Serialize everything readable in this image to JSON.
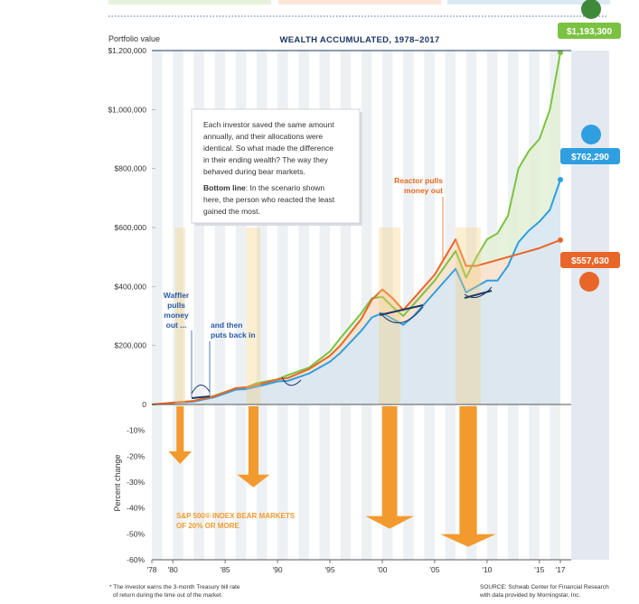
{
  "chart_data": {
    "type": "line",
    "title": "WEALTH ACCUMULATED, 1978–2017",
    "ylabel": "Portfolio value",
    "ylabel_lower": "Percent change",
    "xlabel": "",
    "x_ticks": [
      "'78",
      "'80",
      "'85",
      "'90",
      "'95",
      "'00",
      "'05",
      "'10",
      "'15",
      "'17"
    ],
    "x_tick_years": [
      1978,
      1980,
      1985,
      1990,
      1995,
      2000,
      2005,
      2010,
      2015,
      2017
    ],
    "ylim": [
      0,
      1200000
    ],
    "y_ticks": [
      {
        "value": 0,
        "label": "0"
      },
      {
        "value": 200000,
        "label": "$200,000"
      },
      {
        "value": 400000,
        "label": "$400,000"
      },
      {
        "value": 600000,
        "label": "$600,000"
      },
      {
        "value": 800000,
        "label": "$800,000"
      },
      {
        "value": 1000000,
        "label": "$1,000,000"
      },
      {
        "value": 1200000,
        "label": "$1,200,000"
      }
    ],
    "ylim_lower": [
      -60,
      0
    ],
    "lower_ticks": [
      {
        "value": -10,
        "label": "-10%"
      },
      {
        "value": -20,
        "label": "-20%"
      },
      {
        "value": -30,
        "label": "-30%"
      },
      {
        "value": -40,
        "label": "-40%"
      },
      {
        "value": -50,
        "label": "-50%"
      },
      {
        "value": -60,
        "label": "-60%"
      }
    ],
    "series": [
      {
        "name": "green",
        "color": "#7cc242",
        "x": [
          1978,
          1980,
          1982,
          1984,
          1986,
          1987,
          1988,
          1990,
          1991,
          1993,
          1995,
          1996,
          1998,
          1999,
          2000,
          2001,
          2002,
          2003,
          2005,
          2007,
          2008,
          2009,
          2010,
          2011,
          2012,
          2013,
          2014,
          2015,
          2016,
          2017
        ],
        "values": [
          0,
          6000,
          12000,
          30000,
          55000,
          58000,
          72000,
          85000,
          100000,
          125000,
          180000,
          225000,
          310000,
          360000,
          365000,
          330000,
          300000,
          340000,
          420000,
          520000,
          430000,
          500000,
          560000,
          580000,
          640000,
          800000,
          860000,
          900000,
          1000000,
          1193300
        ]
      },
      {
        "name": "blue",
        "color": "#2f9fe0",
        "x": [
          1978,
          1980,
          1982,
          1984,
          1986,
          1987,
          1988,
          1990,
          1991,
          1993,
          1995,
          1996,
          1998,
          1999,
          2000,
          2001,
          2002,
          2003,
          2005,
          2007,
          2008,
          2009,
          2010,
          2011,
          2012,
          2013,
          2014,
          2015,
          2016,
          2017
        ],
        "values": [
          0,
          5000,
          10000,
          25000,
          50000,
          52000,
          60000,
          78000,
          80000,
          105000,
          145000,
          175000,
          250000,
          295000,
          310000,
          290000,
          270000,
          300000,
          380000,
          460000,
          380000,
          400000,
          420000,
          420000,
          470000,
          550000,
          590000,
          620000,
          660000,
          762290
        ]
      },
      {
        "name": "orange",
        "color": "#e8662a",
        "x": [
          1978,
          1980,
          1982,
          1984,
          1986,
          1987,
          1988,
          1990,
          1991,
          1993,
          1995,
          1996,
          1998,
          1999,
          2000,
          2001,
          2002,
          2003,
          2005,
          2007,
          2008,
          2009,
          2012,
          2015,
          2017
        ],
        "values": [
          0,
          6000,
          12000,
          28000,
          55000,
          58000,
          66000,
          85000,
          90000,
          120000,
          165000,
          200000,
          290000,
          355000,
          390000,
          360000,
          320000,
          360000,
          440000,
          560000,
          470000,
          470000,
          500000,
          530000,
          557630
        ]
      }
    ],
    "bear_markets": [
      {
        "year": 1980.7,
        "change": -23
      },
      {
        "year": 1987.7,
        "change": -32
      },
      {
        "year": 2000.7,
        "change": -48
      },
      {
        "year": 2008.2,
        "change": -55
      }
    ],
    "grid": false,
    "legend": "none"
  },
  "labels": {
    "final_green": "$1,193,300",
    "final_blue": "$762,290",
    "final_orange": "$557,630",
    "waffler_lines": [
      "Waffler",
      "pulls",
      "money",
      "out ..."
    ],
    "then_lines": [
      "and then",
      "puts back in"
    ],
    "reactor_lines": [
      "Reactor pulls",
      "money out"
    ],
    "bear_lines": [
      "S&P 500® INDEX BEAR MARKETS",
      "OF 20% OR MORE"
    ]
  },
  "callout": {
    "lines": [
      "Each investor saved the same amount",
      "annually, and their allocations were",
      "identical. So what made the difference",
      "in their ending wealth? The way they",
      "behaved during bear markets."
    ],
    "bottom_title": "Bottom line",
    "bottom_lines": [
      ": In the scenario shown",
      "here, the person who reacted the least",
      "gained the most."
    ]
  },
  "footnote": {
    "left": [
      "* The investor earns the 3-month Treasury bill rate",
      "of return during the time out of the market."
    ],
    "right": [
      "SOURCE: Schwab Center for Financial Research",
      "with data provided by Morningstar, Inc."
    ]
  }
}
